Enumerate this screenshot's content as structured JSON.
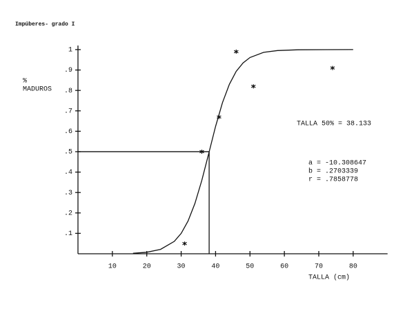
{
  "chart_data": {
    "type": "line",
    "title": "Impúberes- grado I",
    "y_label_top": "%",
    "y_label": "MADUROS",
    "x_label": "TALLA (cm)",
    "annotations": [
      "TALLA 50% =  38.133",
      "a =  -10.308647",
      "b =  .2703339",
      "r =  .7858778"
    ],
    "xlim": [
      0,
      90
    ],
    "ylim": [
      0,
      1.02
    ],
    "xticks": [
      10,
      20,
      30,
      40,
      50,
      60,
      70,
      80
    ],
    "yticks": [
      {
        "value": 0.1,
        "label": ".1"
      },
      {
        "value": 0.2,
        "label": ".2"
      },
      {
        "value": 0.3,
        "label": ".3"
      },
      {
        "value": 0.4,
        "label": ".4"
      },
      {
        "value": 0.5,
        "label": ".5"
      },
      {
        "value": 0.6,
        "label": ".6"
      },
      {
        "value": 0.7,
        "label": ".7"
      },
      {
        "value": 0.8,
        "label": ".8"
      },
      {
        "value": 0.9,
        "label": ".9"
      },
      {
        "value": 1,
        "label": "1"
      }
    ],
    "color": "#111111",
    "curve": {
      "x": [
        16,
        20,
        24,
        28,
        30,
        32,
        34,
        36,
        38,
        40,
        42,
        44,
        46,
        48,
        50,
        54,
        58,
        64,
        72,
        80
      ],
      "values": [
        0.0025,
        0.0074,
        0.0215,
        0.0607,
        0.1,
        0.16,
        0.2466,
        0.3598,
        0.491,
        0.6236,
        0.74,
        0.83,
        0.8935,
        0.935,
        0.9612,
        0.9865,
        0.9954,
        0.9991,
        0.9999,
        1.0
      ]
    },
    "points": {
      "x": [
        31,
        36,
        41,
        46,
        51,
        74
      ],
      "values": [
        0.05,
        0.5,
        0.67,
        0.99,
        0.82,
        0.91
      ]
    },
    "reference": {
      "x": 38.133,
      "y": 0.5
    }
  }
}
